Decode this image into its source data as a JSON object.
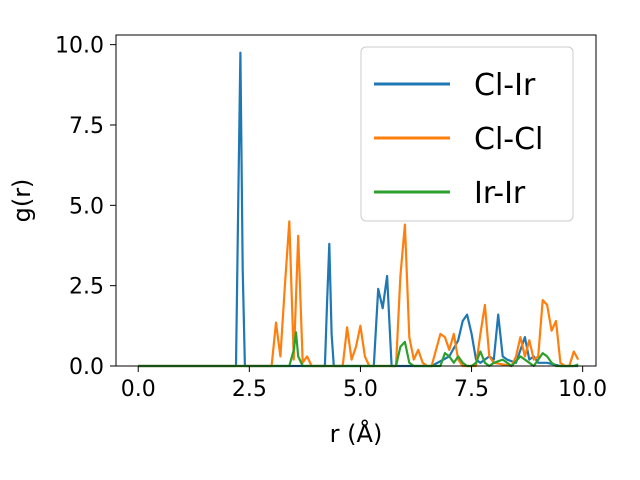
{
  "chart_data": {
    "type": "line",
    "xlabel": "r (Å)",
    "ylabel": "g(r)",
    "xlim": [
      -0.5,
      10.3
    ],
    "ylim": [
      0,
      10.3
    ],
    "xticks": [
      0.0,
      2.5,
      5.0,
      7.5,
      10.0
    ],
    "xtick_labels": [
      "0.0",
      "2.5",
      "5.0",
      "7.5",
      "10.0"
    ],
    "yticks": [
      0.0,
      2.5,
      5.0,
      7.5,
      10.0
    ],
    "ytick_labels": [
      "0.0",
      "2.5",
      "5.0",
      "7.5",
      "10.0"
    ],
    "grid": false,
    "legend_position": "top-right",
    "series": [
      {
        "name": "Cl-Ir",
        "color": "#1f77b4",
        "x": [
          0.0,
          2.2,
          2.25,
          2.3,
          2.35,
          2.4,
          4.2,
          4.25,
          4.3,
          4.35,
          4.4,
          5.3,
          5.4,
          5.5,
          5.6,
          5.7,
          6.6,
          7.0,
          7.2,
          7.3,
          7.4,
          7.5,
          7.6,
          7.7,
          7.9,
          8.0,
          8.1,
          8.2,
          8.3,
          8.5,
          8.7,
          8.8,
          8.9,
          9.0,
          9.2,
          9.5,
          9.9
        ],
        "y": [
          0.0,
          0.0,
          5.0,
          9.75,
          3.0,
          0.0,
          0.0,
          2.0,
          3.8,
          1.0,
          0.0,
          0.0,
          2.4,
          1.8,
          2.8,
          0.0,
          0.0,
          0.3,
          0.8,
          1.4,
          1.6,
          1.0,
          0.2,
          0.1,
          0.3,
          0.2,
          1.6,
          0.3,
          0.2,
          0.1,
          0.9,
          0.2,
          0.3,
          0.1,
          0.1,
          0.0,
          0.0
        ]
      },
      {
        "name": "Cl-Cl",
        "color": "#ff7f0e",
        "x": [
          0.0,
          3.0,
          3.1,
          3.2,
          3.3,
          3.4,
          3.5,
          3.6,
          3.7,
          3.8,
          3.9,
          4.6,
          4.7,
          4.8,
          4.9,
          5.0,
          5.1,
          5.2,
          5.8,
          5.9,
          6.0,
          6.1,
          6.2,
          6.3,
          6.4,
          6.5,
          6.6,
          6.8,
          6.9,
          7.0,
          7.1,
          7.2,
          7.3,
          7.6,
          7.7,
          7.8,
          7.9,
          8.0,
          8.4,
          8.5,
          8.6,
          8.7,
          8.8,
          8.9,
          9.0,
          9.1,
          9.2,
          9.3,
          9.4,
          9.5,
          9.6,
          9.7,
          9.8,
          9.9
        ],
        "y": [
          0.0,
          0.0,
          1.35,
          0.3,
          2.5,
          4.5,
          0.2,
          4.05,
          0.1,
          0.3,
          0.0,
          0.0,
          1.2,
          0.2,
          0.6,
          1.25,
          0.3,
          0.0,
          0.0,
          2.8,
          4.4,
          0.9,
          0.2,
          0.5,
          0.1,
          0.0,
          0.0,
          1.0,
          0.9,
          0.5,
          1.0,
          0.2,
          0.0,
          0.0,
          1.0,
          1.9,
          0.3,
          0.1,
          0.0,
          0.3,
          0.9,
          0.3,
          0.8,
          0.2,
          0.3,
          2.05,
          1.9,
          1.1,
          1.4,
          0.1,
          0.0,
          0.0,
          0.45,
          0.2
        ]
      },
      {
        "name": "Ir-Ir",
        "color": "#2ca02c",
        "x": [
          0.0,
          3.4,
          3.5,
          3.55,
          3.6,
          3.7,
          5.8,
          5.9,
          6.0,
          6.1,
          6.2,
          6.8,
          6.9,
          7.0,
          7.1,
          7.2,
          7.3,
          7.4,
          7.5,
          7.6,
          7.7,
          7.8,
          7.9,
          8.0,
          8.2,
          8.4,
          8.6,
          8.8,
          8.9,
          9.0,
          9.1,
          9.2,
          9.3,
          9.4,
          9.6,
          9.8,
          9.9
        ],
        "y": [
          0.0,
          0.0,
          0.5,
          1.05,
          0.3,
          0.0,
          0.0,
          0.6,
          0.75,
          0.1,
          0.0,
          0.0,
          0.4,
          0.3,
          0.1,
          0.3,
          0.1,
          0.0,
          0.0,
          0.1,
          0.45,
          0.1,
          0.0,
          0.1,
          0.2,
          0.0,
          0.3,
          0.1,
          0.0,
          0.2,
          0.4,
          0.3,
          0.1,
          0.0,
          0.0,
          0.0,
          0.05
        ]
      }
    ]
  }
}
